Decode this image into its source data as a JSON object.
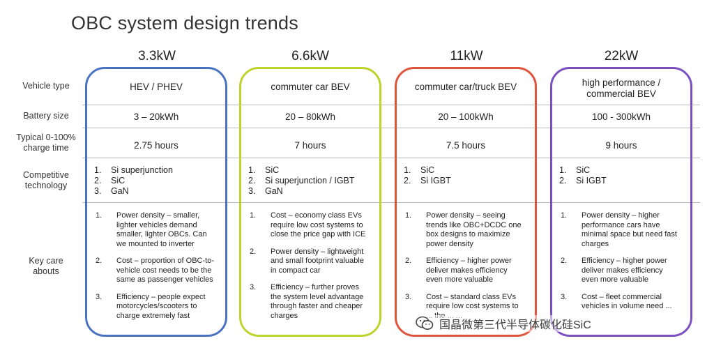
{
  "title": "OBC system design trends",
  "row_labels": {
    "vehicle_type": "Vehicle type",
    "battery_size": "Battery size",
    "charge_time": "Typical 0-100%\ncharge time",
    "competitive_tech": "Competitive\ntechnology",
    "key_care": "Key care\nabouts"
  },
  "columns": [
    {
      "power": "3.3kW",
      "border_color": "#4a72c4",
      "vehicle_type": "HEV / PHEV",
      "battery_size": "3 – 20kWh",
      "charge_time": "2.75 hours",
      "competitive_tech": [
        {
          "n": "1.",
          "t": "Si superjunction"
        },
        {
          "n": "2.",
          "t": "SiC"
        },
        {
          "n": "3.",
          "t": "GaN"
        }
      ],
      "key_care": [
        {
          "n": "1.",
          "t": "Power density – smaller, lighter vehicles demand smaller, lighter OBCs. Can we mounted to inverter"
        },
        {
          "n": "2.",
          "t": "Cost – proportion of OBC-to-vehicle cost needs to be the same as passenger vehicles"
        },
        {
          "n": "3.",
          "t": "Efficiency – people expect motorcycles/scooters to charge extremely fast"
        }
      ]
    },
    {
      "power": "6.6kW",
      "border_color": "#bcd42a",
      "vehicle_type": "commuter car BEV",
      "battery_size": "20 – 80kWh",
      "charge_time": "7 hours",
      "competitive_tech": [
        {
          "n": "1.",
          "t": "SiC"
        },
        {
          "n": "2.",
          "t": "Si superjunction / IGBT"
        },
        {
          "n": "3.",
          "t": "GaN"
        }
      ],
      "key_care": [
        {
          "n": "1.",
          "t": "Cost – economy class EVs require low cost systems to close the price gap with ICE"
        },
        {
          "n": "2.",
          "t": "Power density – lightweight and small footprint valuable in compact car"
        },
        {
          "n": "3.",
          "t": "Efficiency – further proves the system level advantage through faster and cheaper charges"
        }
      ]
    },
    {
      "power": "11kW",
      "border_color": "#e0533c",
      "vehicle_type": "commuter car/truck BEV",
      "battery_size": "20 – 100kWh",
      "charge_time": "7.5 hours",
      "competitive_tech": [
        {
          "n": "1.",
          "t": "SiC"
        },
        {
          "n": "2.",
          "t": "Si IGBT"
        }
      ],
      "key_care": [
        {
          "n": "1.",
          "t": "Power density – seeing trends like OBC+DCDC one box designs to maximize power density"
        },
        {
          "n": "2.",
          "t": "Efficiency – higher power deliver makes efficiency even more valuable"
        },
        {
          "n": "3.",
          "t": "Cost – standard class EVs require low cost systems to ... the ... ..."
        }
      ]
    },
    {
      "power": "22kW",
      "border_color": "#7b4fc2",
      "vehicle_type": "high performance /\ncommercial BEV",
      "battery_size": "100 - 300kWh",
      "charge_time": "9 hours",
      "competitive_tech": [
        {
          "n": "1.",
          "t": "SiC"
        },
        {
          "n": "2.",
          "t": "Si IGBT"
        }
      ],
      "key_care": [
        {
          "n": "1.",
          "t": "Power density – higher performance cars have minimal space but need fast charges"
        },
        {
          "n": "2.",
          "t": "Efficiency – higher power deliver makes efficiency even more valuable"
        },
        {
          "n": "3.",
          "t": "Cost – fleet commercial vehicles in volume need ..."
        }
      ]
    }
  ],
  "watermark": "国晶微第三代半导体碳化硅SiC"
}
